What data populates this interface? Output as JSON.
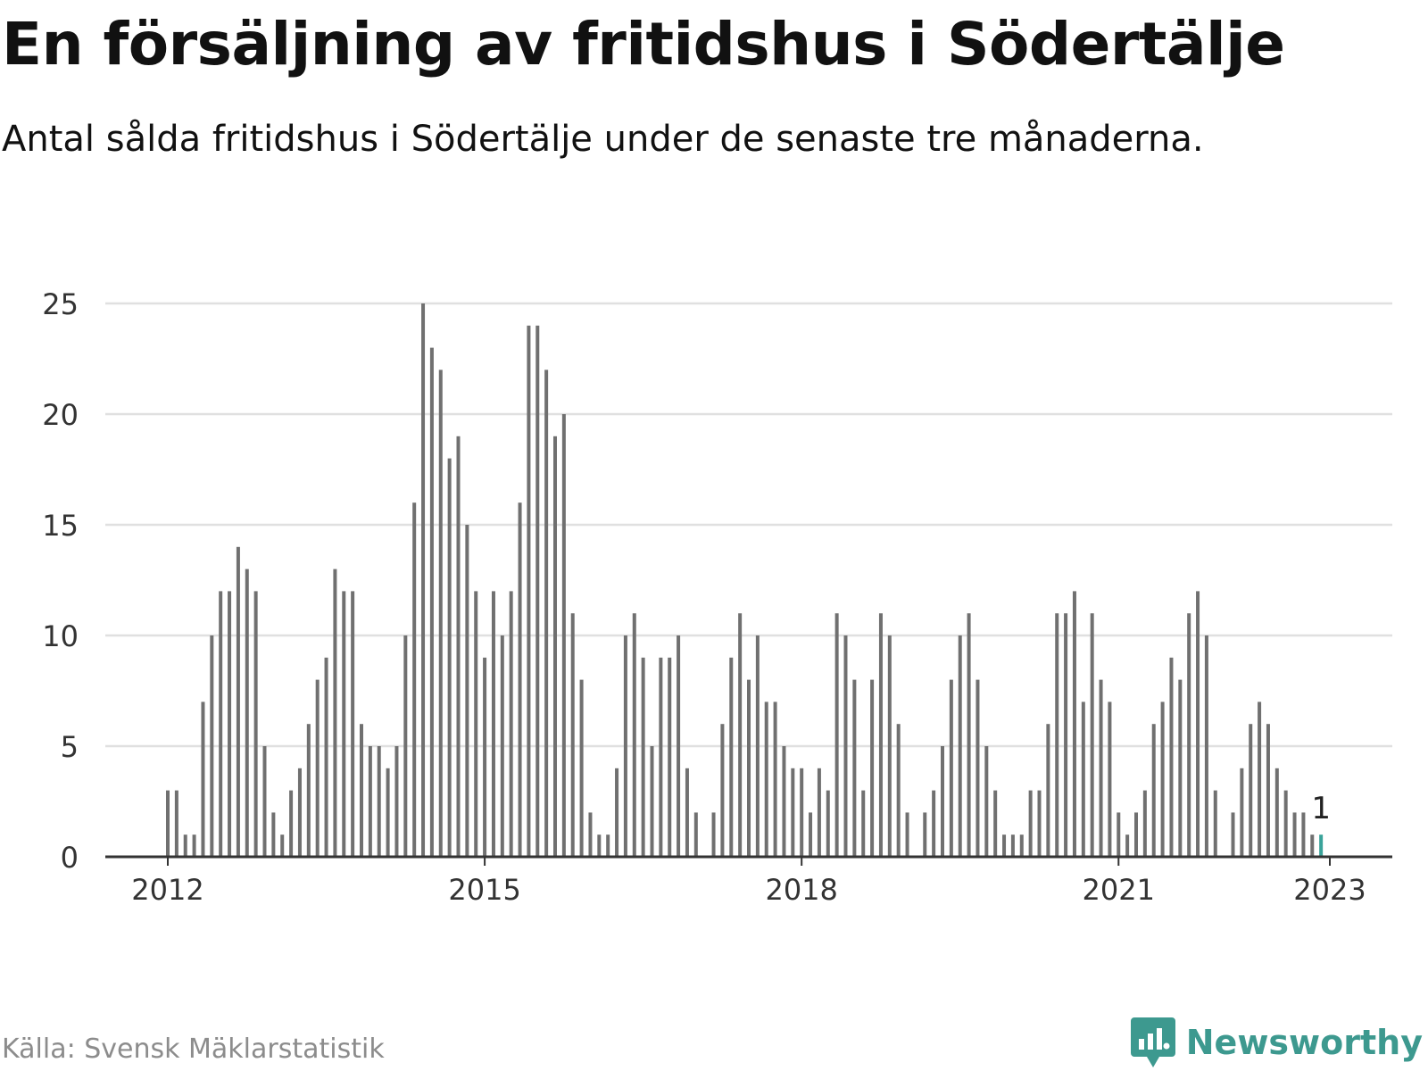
{
  "header": {
    "title": "En försäljning av fritidshus i Södertälje",
    "subtitle": "Antal sålda fritidshus i Södertälje under de senaste tre månaderna."
  },
  "footer": {
    "source": "Källa: Svensk Mäklarstatistik",
    "brand": "Newsworthy"
  },
  "colors": {
    "bar": "#707070",
    "highlight": "#3aa39a",
    "grid": "#e0e0e0",
    "axis": "#333333",
    "brand": "#3d998f",
    "source": "#8c8c8c"
  },
  "chart_data": {
    "type": "bar",
    "x_start": "2012-01",
    "x_end": "2022-12",
    "frequency": "monthly",
    "x_ticks": [
      "2012",
      "2015",
      "2018",
      "2021",
      "2023"
    ],
    "y_ticks": [
      0,
      5,
      10,
      15,
      20,
      25
    ],
    "ylim": [
      0,
      25
    ],
    "grid": true,
    "highlight_last": true,
    "last_value_label": "1",
    "values": [
      3,
      3,
      1,
      1,
      7,
      10,
      12,
      12,
      14,
      13,
      12,
      5,
      2,
      1,
      3,
      4,
      6,
      8,
      9,
      13,
      12,
      12,
      6,
      5,
      5,
      4,
      5,
      10,
      16,
      25,
      23,
      22,
      18,
      19,
      15,
      12,
      9,
      12,
      10,
      12,
      16,
      24,
      24,
      22,
      19,
      20,
      11,
      8,
      2,
      1,
      1,
      4,
      10,
      11,
      9,
      5,
      9,
      9,
      10,
      4,
      2,
      0,
      2,
      6,
      9,
      11,
      8,
      10,
      7,
      7,
      5,
      4,
      4,
      2,
      4,
      3,
      11,
      10,
      8,
      3,
      8,
      11,
      10,
      6,
      2,
      0,
      2,
      3,
      5,
      8,
      10,
      11,
      8,
      5,
      3,
      1,
      1,
      1,
      3,
      3,
      6,
      11,
      11,
      12,
      7,
      11,
      8,
      7,
      2,
      1,
      2,
      3,
      6,
      7,
      9,
      8,
      11,
      12,
      10,
      3,
      0,
      2,
      4,
      6,
      7,
      6,
      4,
      3,
      2,
      2,
      1,
      1
    ]
  }
}
